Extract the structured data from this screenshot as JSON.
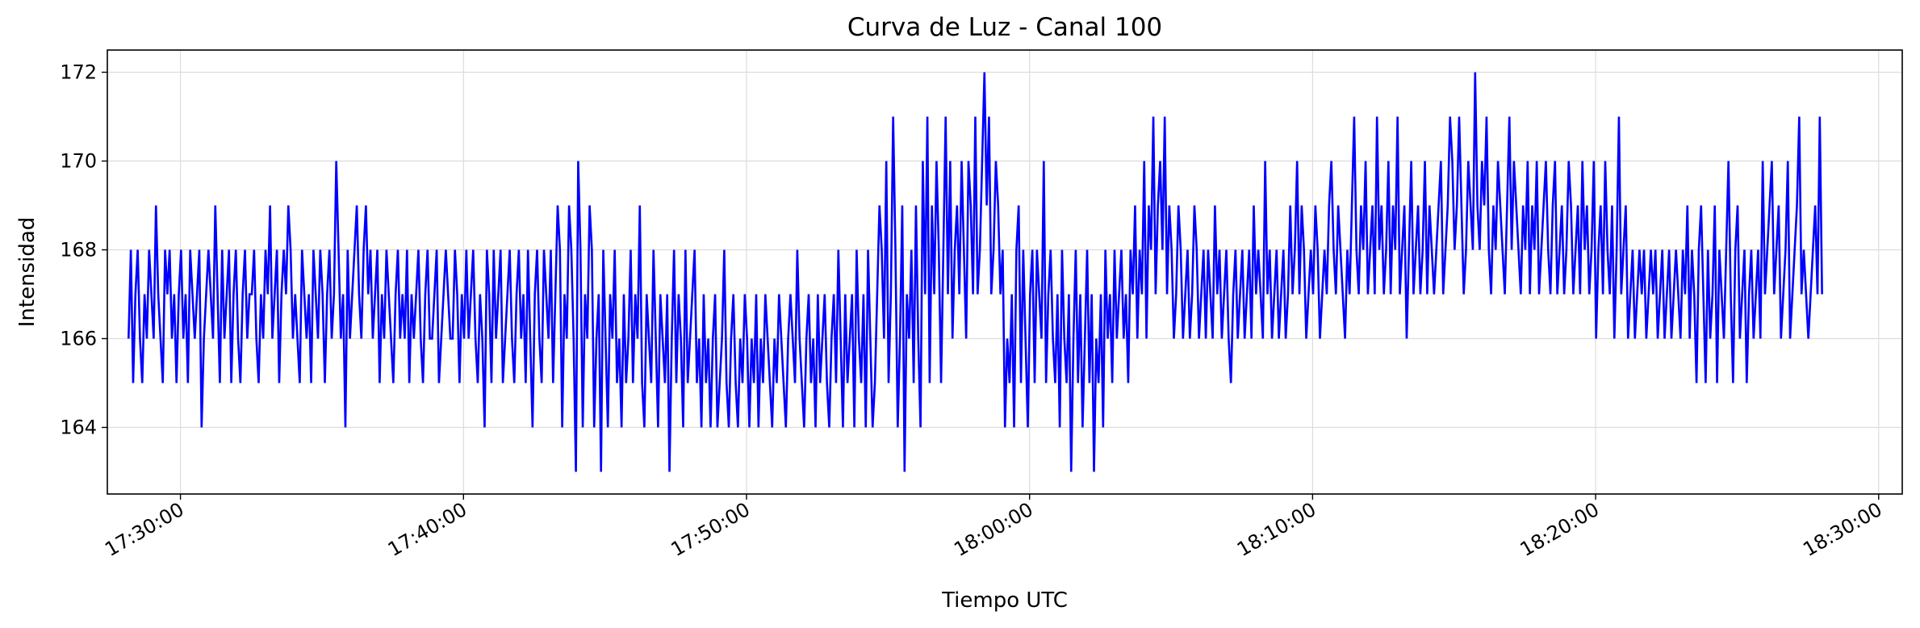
{
  "chart_data": {
    "type": "line",
    "title": "Curva de Luz - Canal 100",
    "xlabel": "Tiempo UTC",
    "ylabel": "Intensidad",
    "x_ticks": [
      "17:30:00",
      "17:40:00",
      "17:50:00",
      "18:00:00",
      "18:10:00",
      "18:20:00",
      "18:30:00"
    ],
    "y_ticks": [
      164,
      166,
      168,
      170,
      172
    ],
    "xlim": [
      "17:27:25",
      "18:30:50"
    ],
    "ylim": [
      162.5,
      172.5
    ],
    "grid": true,
    "legend": "none",
    "series": [
      {
        "color": "#0000ff",
        "time_start": "17:28:10",
        "time_end": "18:28:00",
        "values": [
          166,
          168,
          165,
          167,
          168,
          166,
          165,
          167,
          166,
          168,
          167,
          166,
          169,
          167,
          166,
          165,
          168,
          167,
          168,
          166,
          167,
          165,
          167,
          168,
          166,
          167,
          165,
          168,
          167,
          166,
          167,
          168,
          164,
          166,
          167,
          168,
          167,
          166,
          169,
          167,
          165,
          168,
          166,
          167,
          168,
          165,
          167,
          168,
          166,
          165,
          167,
          168,
          166,
          167,
          167,
          168,
          166,
          165,
          167,
          166,
          168,
          167,
          169,
          166,
          167,
          168,
          165,
          167,
          168,
          167,
          169,
          168,
          166,
          167,
          166,
          165,
          168,
          167,
          166,
          167,
          165,
          168,
          167,
          166,
          168,
          167,
          165,
          167,
          168,
          166,
          167,
          170,
          168,
          166,
          167,
          164,
          168,
          166,
          167,
          168,
          169,
          167,
          166,
          168,
          169,
          167,
          168,
          166,
          167,
          168,
          165,
          167,
          166,
          168,
          167,
          166,
          165,
          167,
          168,
          166,
          167,
          166,
          168,
          165,
          167,
          166,
          167,
          168,
          166,
          165,
          167,
          168,
          166,
          166,
          167,
          168,
          165,
          166,
          167,
          168,
          167,
          166,
          166,
          168,
          167,
          165,
          167,
          166,
          168,
          166,
          167,
          168,
          166,
          165,
          167,
          166,
          164,
          168,
          167,
          165,
          168,
          166,
          167,
          168,
          165,
          166,
          167,
          168,
          166,
          165,
          167,
          168,
          166,
          167,
          165,
          168,
          166,
          164,
          167,
          168,
          166,
          165,
          168,
          167,
          166,
          168,
          165,
          167,
          169,
          168,
          164,
          167,
          166,
          169,
          168,
          166,
          163,
          170,
          168,
          164,
          167,
          166,
          169,
          168,
          164,
          166,
          167,
          163,
          168,
          166,
          164,
          167,
          166,
          168,
          165,
          166,
          164,
          167,
          165,
          166,
          168,
          165,
          167,
          166,
          169,
          165,
          164,
          167,
          166,
          165,
          168,
          166,
          164,
          167,
          166,
          165,
          167,
          163,
          166,
          168,
          165,
          167,
          166,
          164,
          168,
          165,
          166,
          167,
          168,
          165,
          166,
          164,
          167,
          165,
          166,
          164,
          166,
          167,
          164,
          165,
          166,
          168,
          165,
          164,
          166,
          167,
          165,
          164,
          166,
          165,
          167,
          166,
          164,
          166,
          165,
          167,
          164,
          166,
          165,
          167,
          166,
          165,
          164,
          166,
          165,
          167,
          166,
          165,
          164,
          166,
          167,
          166,
          165,
          168,
          166,
          165,
          164,
          166,
          167,
          165,
          166,
          164,
          167,
          165,
          166,
          167,
          165,
          164,
          166,
          167,
          165,
          168,
          166,
          164,
          167,
          165,
          166,
          167,
          164,
          168,
          166,
          165,
          167,
          164,
          168,
          166,
          164,
          165,
          167,
          169,
          168,
          166,
          170,
          165,
          167,
          171,
          168,
          164,
          166,
          169,
          163,
          167,
          166,
          168,
          165,
          169,
          166,
          164,
          170,
          167,
          171,
          165,
          169,
          167,
          170,
          168,
          165,
          168,
          171,
          167,
          170,
          166,
          168,
          169,
          167,
          170,
          168,
          166,
          170,
          169,
          167,
          171,
          167,
          168,
          170,
          172,
          169,
          171,
          167,
          168,
          170,
          169,
          167,
          168,
          164,
          166,
          165,
          167,
          164,
          168,
          169,
          165,
          168,
          166,
          164,
          167,
          168,
          165,
          168,
          167,
          166,
          170,
          165,
          167,
          168,
          166,
          165,
          167,
          164,
          168,
          166,
          165,
          167,
          163,
          166,
          168,
          165,
          167,
          164,
          166,
          168,
          165,
          167,
          163,
          166,
          165,
          167,
          164,
          168,
          166,
          167,
          165,
          168,
          166,
          167,
          168,
          166,
          167,
          165,
          168,
          167,
          169,
          166,
          168,
          167,
          170,
          166,
          169,
          168,
          171,
          167,
          169,
          170,
          168,
          171,
          167,
          169,
          168,
          166,
          167,
          169,
          168,
          166,
          167,
          168,
          166,
          167,
          169,
          168,
          166,
          167,
          168,
          166,
          168,
          167,
          166,
          169,
          167,
          168,
          166,
          167,
          168,
          166,
          165,
          167,
          168,
          166,
          167,
          168,
          166,
          167,
          168,
          166,
          169,
          167,
          168,
          167,
          166,
          170,
          167,
          168,
          166,
          167,
          168,
          166,
          167,
          168,
          166,
          167,
          169,
          167,
          168,
          170,
          167,
          169,
          168,
          166,
          167,
          168,
          167,
          169,
          168,
          166,
          167,
          168,
          167,
          169,
          170,
          168,
          167,
          169,
          168,
          167,
          166,
          168,
          167,
          169,
          171,
          168,
          167,
          169,
          168,
          170,
          167,
          168,
          169,
          167,
          171,
          168,
          169,
          167,
          168,
          170,
          167,
          169,
          168,
          171,
          167,
          168,
          169,
          166,
          168,
          170,
          167,
          168,
          169,
          167,
          168,
          170,
          167,
          169,
          168,
          167,
          168,
          169,
          170,
          167,
          168,
          169,
          171,
          170,
          168,
          169,
          171,
          169,
          167,
          168,
          170,
          169,
          168,
          172,
          169,
          168,
          170,
          169,
          171,
          168,
          167,
          169,
          168,
          170,
          169,
          168,
          167,
          169,
          171,
          168,
          170,
          169,
          168,
          167,
          169,
          168,
          170,
          167,
          169,
          168,
          170,
          167,
          168,
          169,
          170,
          168,
          167,
          169,
          170,
          167,
          168,
          169,
          167,
          168,
          170,
          169,
          167,
          168,
          169,
          167,
          170,
          168,
          169,
          167,
          168,
          170,
          166,
          168,
          169,
          167,
          170,
          168,
          167,
          169,
          166,
          168,
          171,
          167,
          168,
          169,
          166,
          167,
          168,
          166,
          167,
          168,
          167,
          168,
          166,
          167,
          168,
          167,
          168,
          166,
          167,
          168,
          166,
          167,
          168,
          166,
          167,
          168,
          167,
          166,
          168,
          167,
          169,
          166,
          168,
          167,
          165,
          168,
          169,
          167,
          165,
          168,
          166,
          167,
          169,
          165,
          168,
          167,
          166,
          168,
          170,
          167,
          165,
          168,
          169,
          166,
          167,
          168,
          165,
          167,
          168,
          166,
          167,
          168,
          166,
          170,
          167,
          168,
          169,
          170,
          167,
          168,
          169,
          166,
          167,
          168,
          170,
          166,
          167,
          168,
          169,
          171,
          167,
          168,
          167,
          166,
          167,
          168,
          169,
          167,
          171,
          167
        ]
      }
    ]
  }
}
